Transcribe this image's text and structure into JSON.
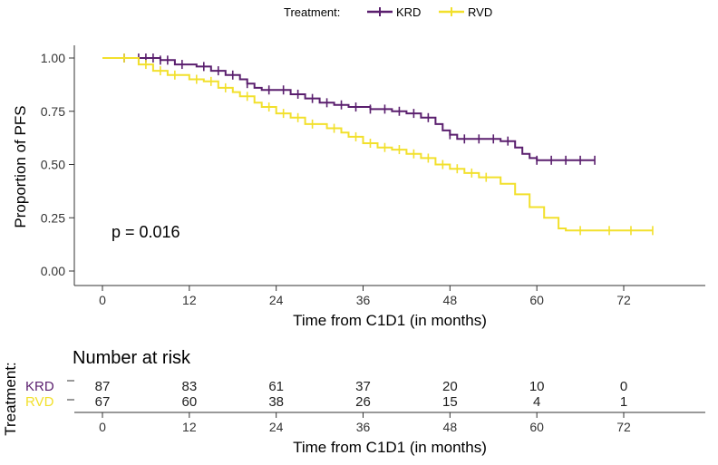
{
  "legend": {
    "title": "Treatment:",
    "entries": [
      {
        "label": "KRD",
        "color": "#5a1f6e"
      },
      {
        "label": "RVD",
        "color": "#f2e02c"
      }
    ]
  },
  "chart_data": {
    "type": "line",
    "subtype": "kaplan-meier",
    "xlabel": "Time from C1D1 (in months)",
    "ylabel": "Proportion of PFS",
    "xlim": [
      -5,
      80
    ],
    "ylim": [
      0,
      1
    ],
    "xticks": [
      0,
      12,
      24,
      36,
      48,
      60,
      72
    ],
    "yticks": [
      0,
      0.25,
      0.5,
      0.75,
      1.0
    ],
    "ytick_labels": [
      "0.00",
      "0.25",
      "0.50",
      "0.75",
      "1.00"
    ],
    "annotation": "p = 0.016",
    "series": [
      {
        "name": "KRD",
        "color": "#5a1f6e",
        "steps": [
          [
            0,
            1.0
          ],
          [
            8,
            0.99
          ],
          [
            10,
            0.97
          ],
          [
            13,
            0.96
          ],
          [
            15,
            0.94
          ],
          [
            17,
            0.92
          ],
          [
            19,
            0.9
          ],
          [
            20,
            0.88
          ],
          [
            21,
            0.86
          ],
          [
            22,
            0.85
          ],
          [
            26,
            0.83
          ],
          [
            28,
            0.81
          ],
          [
            30,
            0.79
          ],
          [
            32,
            0.78
          ],
          [
            34,
            0.77
          ],
          [
            37,
            0.76
          ],
          [
            40,
            0.75
          ],
          [
            42,
            0.74
          ],
          [
            44,
            0.72
          ],
          [
            46,
            0.69
          ],
          [
            47,
            0.66
          ],
          [
            48,
            0.64
          ],
          [
            49,
            0.62
          ],
          [
            55,
            0.61
          ],
          [
            57,
            0.58
          ],
          [
            58,
            0.55
          ],
          [
            59,
            0.53
          ],
          [
            60,
            0.52
          ],
          [
            68,
            0.52
          ]
        ],
        "censors": [
          [
            3,
            1.0
          ],
          [
            5,
            1.0
          ],
          [
            6,
            1.0
          ],
          [
            7,
            1.0
          ],
          [
            8,
            0.99
          ],
          [
            9,
            0.99
          ],
          [
            11,
            0.97
          ],
          [
            14,
            0.96
          ],
          [
            16,
            0.94
          ],
          [
            18,
            0.92
          ],
          [
            20,
            0.88
          ],
          [
            23,
            0.85
          ],
          [
            25,
            0.85
          ],
          [
            27,
            0.83
          ],
          [
            29,
            0.81
          ],
          [
            31,
            0.79
          ],
          [
            33,
            0.78
          ],
          [
            35,
            0.77
          ],
          [
            37,
            0.76
          ],
          [
            39,
            0.76
          ],
          [
            41,
            0.75
          ],
          [
            43,
            0.74
          ],
          [
            45,
            0.72
          ],
          [
            48,
            0.64
          ],
          [
            50,
            0.62
          ],
          [
            52,
            0.62
          ],
          [
            54,
            0.62
          ],
          [
            56,
            0.61
          ],
          [
            60,
            0.52
          ],
          [
            62,
            0.52
          ],
          [
            64,
            0.52
          ],
          [
            66,
            0.52
          ],
          [
            68,
            0.52
          ]
        ]
      },
      {
        "name": "RVD",
        "color": "#f2e02c",
        "steps": [
          [
            0,
            1.0
          ],
          [
            5,
            0.97
          ],
          [
            7,
            0.94
          ],
          [
            9,
            0.92
          ],
          [
            12,
            0.9
          ],
          [
            14,
            0.89
          ],
          [
            16,
            0.86
          ],
          [
            18,
            0.84
          ],
          [
            19,
            0.82
          ],
          [
            21,
            0.79
          ],
          [
            22,
            0.77
          ],
          [
            24,
            0.74
          ],
          [
            26,
            0.72
          ],
          [
            28,
            0.69
          ],
          [
            31,
            0.67
          ],
          [
            33,
            0.65
          ],
          [
            34,
            0.63
          ],
          [
            36,
            0.6
          ],
          [
            38,
            0.58
          ],
          [
            40,
            0.57
          ],
          [
            42,
            0.55
          ],
          [
            44,
            0.53
          ],
          [
            46,
            0.5
          ],
          [
            48,
            0.48
          ],
          [
            50,
            0.46
          ],
          [
            52,
            0.44
          ],
          [
            55,
            0.41
          ],
          [
            57,
            0.36
          ],
          [
            59,
            0.3
          ],
          [
            61,
            0.25
          ],
          [
            63,
            0.2
          ],
          [
            64,
            0.19
          ],
          [
            76,
            0.19
          ]
        ],
        "censors": [
          [
            3,
            1.0
          ],
          [
            6,
            0.97
          ],
          [
            8,
            0.94
          ],
          [
            10,
            0.92
          ],
          [
            13,
            0.9
          ],
          [
            15,
            0.89
          ],
          [
            17,
            0.86
          ],
          [
            20,
            0.82
          ],
          [
            23,
            0.77
          ],
          [
            25,
            0.74
          ],
          [
            27,
            0.72
          ],
          [
            29,
            0.69
          ],
          [
            32,
            0.67
          ],
          [
            35,
            0.63
          ],
          [
            37,
            0.6
          ],
          [
            39,
            0.58
          ],
          [
            41,
            0.57
          ],
          [
            43,
            0.55
          ],
          [
            45,
            0.53
          ],
          [
            47,
            0.5
          ],
          [
            49,
            0.48
          ],
          [
            51,
            0.46
          ],
          [
            53,
            0.44
          ],
          [
            66,
            0.19
          ],
          [
            70,
            0.19
          ],
          [
            73,
            0.19
          ],
          [
            76,
            0.19
          ]
        ]
      }
    ],
    "risk_table": {
      "title": "Number at risk",
      "ylabel": "Treatment:",
      "xlabel": "Time from C1D1 (in months)",
      "times": [
        0,
        12,
        24,
        36,
        48,
        60,
        72
      ],
      "time_labels": [
        "0",
        "12",
        "24",
        "36",
        "48",
        "60",
        "72"
      ],
      "rows": [
        {
          "name": "KRD",
          "color": "#5a1f6e",
          "counts": [
            "87",
            "83",
            "61",
            "37",
            "20",
            "10",
            "0"
          ]
        },
        {
          "name": "RVD",
          "color": "#f2e02c",
          "counts": [
            "67",
            "60",
            "38",
            "26",
            "15",
            "4",
            "1"
          ]
        }
      ]
    }
  }
}
